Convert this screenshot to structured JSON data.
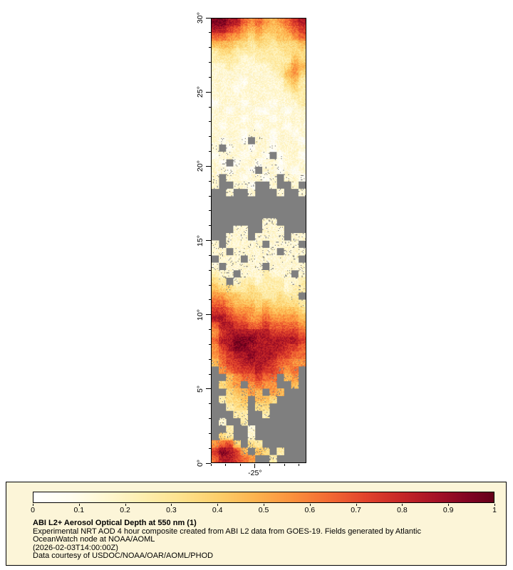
{
  "legend": {
    "title": "ABI L2+ Aerosol Optical Depth at 550 nm (1)",
    "lines": [
      "Experimental NRT AOD 4 hour composite created from ABI L2 data from GOES-19. Fields generated by Atlantic",
      "OceanWatch node at NOAA/AOML",
      "(2026-02-03T14:00:00Z)",
      "Data courtesy of USDOC/NOAA/OAR/AOML/PHOD"
    ],
    "background": "#fcf5d8",
    "border": "#000000"
  },
  "chart_data": {
    "type": "heatmap",
    "title": "ABI L2+ Aerosol Optical Depth at 550 nm (1)",
    "xlabel": "",
    "ylabel": "",
    "lat_range": [
      0,
      30
    ],
    "lon_range": [
      -28,
      -21.5
    ],
    "y_ticks": [
      {
        "value": 30,
        "label": "30°"
      },
      {
        "value": 25,
        "label": "25°"
      },
      {
        "value": 20,
        "label": "20°"
      },
      {
        "value": 15,
        "label": "15°"
      },
      {
        "value": 10,
        "label": "10°"
      },
      {
        "value": 5,
        "label": "5°"
      },
      {
        "value": 0,
        "label": "0°"
      }
    ],
    "x_ticks": [
      {
        "value": -25,
        "label": "-25°"
      }
    ],
    "colorbar": {
      "min": 0,
      "max": 1,
      "ticks": [
        0,
        0.1,
        0.2,
        0.3,
        0.4,
        0.5,
        0.6,
        0.7,
        0.8,
        0.9,
        1
      ],
      "tick_labels": [
        "0",
        "0.1",
        "0.2",
        "0.3",
        "0.4",
        "0.5",
        "0.6",
        "0.7",
        "0.8",
        "0.9",
        "1"
      ]
    },
    "colormap": [
      [
        0.0,
        "#ffffff"
      ],
      [
        0.08,
        "#fffdef"
      ],
      [
        0.16,
        "#fff7d0"
      ],
      [
        0.24,
        "#feeeae"
      ],
      [
        0.32,
        "#fee28d"
      ],
      [
        0.4,
        "#fdcf6b"
      ],
      [
        0.48,
        "#fdb44f"
      ],
      [
        0.56,
        "#fb923d"
      ],
      [
        0.64,
        "#f36b33"
      ],
      [
        0.72,
        "#e2442c"
      ],
      [
        0.8,
        "#c62727"
      ],
      [
        0.88,
        "#a31126"
      ],
      [
        0.95,
        "#7e0322"
      ],
      [
        1.0,
        "#640019"
      ]
    ],
    "missing_color": "#7f7f7f",
    "grid": {
      "cols": 13,
      "rows": 60,
      "encoding": "digit d => AOD = d/10 + 0.05 ; '.' => missing (cloud/no retrieval, gray)",
      "rows_data": [
        "9988656545678",
        "8876545444567",
        "6655434334456",
        "4443323323334",
        "2332222222333",
        "2222112222243",
        "1121111122354",
        "1111111112453",
        "1111011111342",
        "1110111111232",
        "1111111111122",
        "0111011101112",
        "1101110011011",
        "1111011101111",
        "1011110111011",
        "1111011101101",
        "10110.1101110",
        "1.01101101111",
        "01110110.0110",
        "10.0110110111",
        "110110.110101",
        "1.1101101.110",
        "1..110..1..1.",
        "..1..1...1..1",
        ".............",
        ".............",
        ".............",
        ".......11....",
        "...11..111...",
        "..111.1111.11",
        "1.11111.1111.",
        "11.111111.111",
        ".111.1111111.",
        "1.11111.11111",
        "211.1112111.1",
        "32.1221222112",
        "4332232222122",
        "554433322322.",
        "6654443433332",
        "7765554544443",
        "8876655655554",
        "6887766766665",
        "5788888877776",
        "6889998888887",
        "5789988888776",
        "5678898887766",
        "4677888876655",
        ".56777877656.",
        "..4566766.45.",
        ".345.5655..4.",
        "..34454.54...",
        ".2334.443....",
        "..233.33.....",
        "...22..2.....",
        ".1..2........",
        "..2..1.......",
        ".32..1.......",
        "5673.32......",
        "79874.43.2...",
        "688765..2...."
      ]
    }
  }
}
